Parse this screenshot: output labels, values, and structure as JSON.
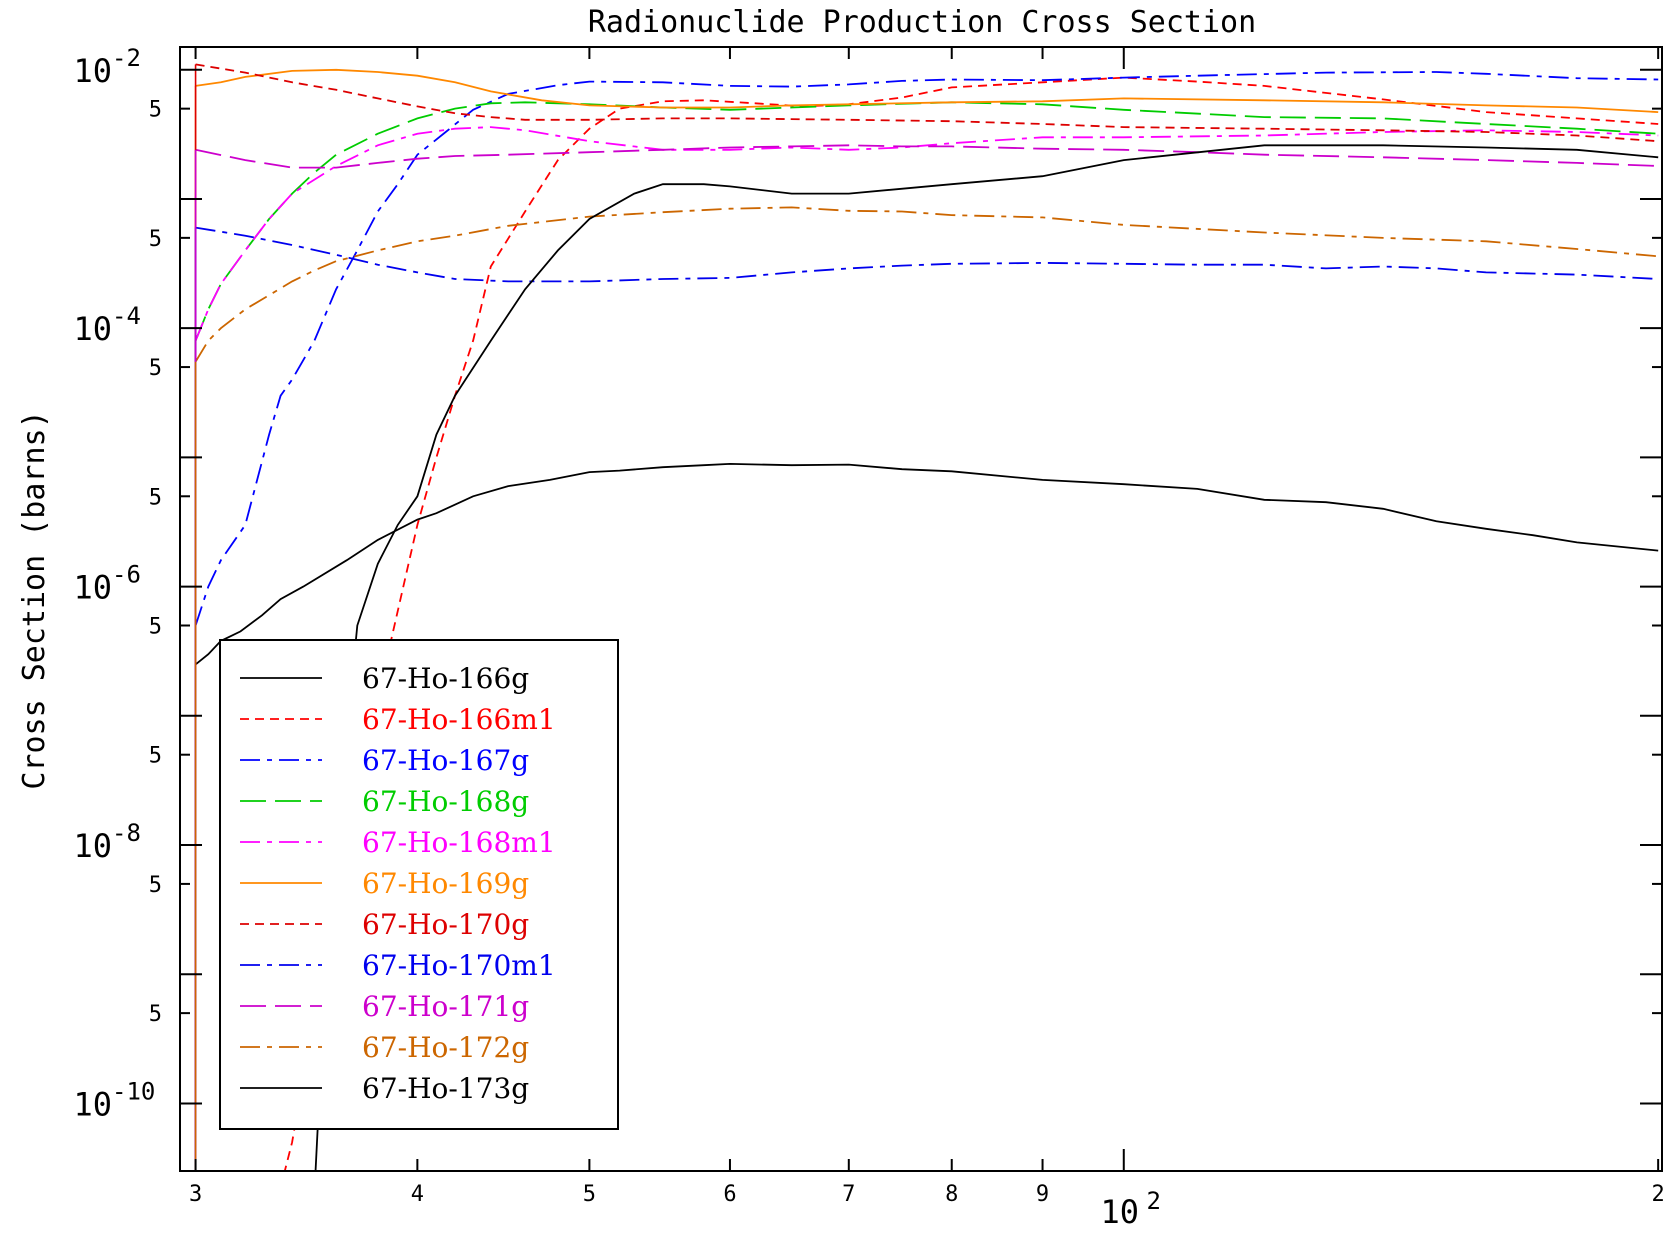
{
  "chart_data": {
    "type": "line",
    "title": "Radionuclide Production Cross Section",
    "ylabel": "Cross Section (barns)",
    "xlabel": "",
    "x_scale": "log",
    "y_scale": "log",
    "xlim": [
      29.4,
      201
    ],
    "ylim": [
      3e-11,
      0.015
    ],
    "grid": false,
    "legend_position": "bottom-left",
    "x_ticks": [
      {
        "value": 30,
        "label": "3"
      },
      {
        "value": 40,
        "label": "4"
      },
      {
        "value": 50,
        "label": "5"
      },
      {
        "value": 60,
        "label": "6"
      },
      {
        "value": 70,
        "label": "7"
      },
      {
        "value": 80,
        "label": "8"
      },
      {
        "value": 90,
        "label": "9"
      },
      {
        "value": 200,
        "label": "2"
      }
    ],
    "x_decade_label": {
      "value": 100,
      "base": "10",
      "exp": "2"
    },
    "y_ticks": [
      {
        "value": 0.01,
        "base": "10",
        "exp": "-2"
      },
      {
        "value": 0.0001,
        "base": "10",
        "exp": "-4"
      },
      {
        "value": 1e-06,
        "base": "10",
        "exp": "-6"
      },
      {
        "value": 1e-08,
        "base": "10",
        "exp": "-8"
      },
      {
        "value": 1e-10,
        "base": "10",
        "exp": "-10"
      }
    ],
    "y_minor_ticks": [
      {
        "value": 0.005,
        "label": "5"
      },
      {
        "value": 0.0005,
        "label": "5"
      },
      {
        "value": 5e-05,
        "label": "5"
      },
      {
        "value": 5e-06,
        "label": "5"
      },
      {
        "value": 5e-07,
        "label": "5"
      },
      {
        "value": 5e-08,
        "label": "5"
      },
      {
        "value": 5e-09,
        "label": "5"
      },
      {
        "value": 5e-10,
        "label": "5"
      }
    ],
    "y_decade_marks": [
      0.001,
      1e-05,
      1e-07,
      1e-09
    ],
    "series": [
      {
        "name": "67-Ho-166g",
        "color": "#000000",
        "dash": "solid",
        "x": [
          30,
          30.5,
          31,
          31.8,
          32.7,
          33.5,
          34.5,
          36.5,
          38,
          40,
          41,
          43,
          45,
          47.5,
          50,
          52,
          55,
          58,
          60,
          65,
          70,
          75,
          80,
          90,
          100,
          110,
          120,
          130,
          140,
          150,
          160,
          170,
          180,
          200
        ],
        "y": [
          2.5e-07,
          3e-07,
          3.8e-07,
          4.5e-07,
          6e-07,
          8e-07,
          1e-06,
          1.6e-06,
          2.3e-06,
          3.3e-06,
          3.7e-06,
          5e-06,
          6e-06,
          6.7e-06,
          7.7e-06,
          7.9e-06,
          8.4e-06,
          8.7e-06,
          8.9e-06,
          8.7e-06,
          8.8e-06,
          8.1e-06,
          7.8e-06,
          6.7e-06,
          6.2e-06,
          5.7e-06,
          4.7e-06,
          4.5e-06,
          4e-06,
          3.2e-06,
          2.8e-06,
          2.5e-06,
          2.2e-06,
          1.9e-06
        ]
      },
      {
        "name": "67-Ho-166m1",
        "color": "#ff0000",
        "dash": "short",
        "x": [
          33,
          34,
          35,
          36.5,
          37.5,
          38.5,
          40,
          41,
          42,
          43,
          44,
          46,
          48,
          50,
          52,
          55,
          58,
          62,
          66,
          70,
          75,
          80,
          90,
          100,
          110,
          120,
          140,
          160,
          180,
          200
        ],
        "y": [
          1e-11,
          5e-11,
          5e-10,
          5e-09,
          2e-08,
          3e-07,
          3e-06,
          1e-05,
          3e-05,
          8e-05,
          0.0003,
          0.0008,
          0.002,
          0.0035,
          0.005,
          0.0057,
          0.0058,
          0.0055,
          0.0052,
          0.0054,
          0.0061,
          0.0073,
          0.008,
          0.0087,
          0.0081,
          0.0075,
          0.0059,
          0.0047,
          0.0042,
          0.0038
        ]
      },
      {
        "name": "67-Ho-167g",
        "color": "#0000ff",
        "dash": "dashdot",
        "x": [
          30,
          30.5,
          31,
          32,
          33,
          33.5,
          34,
          35,
          36,
          37,
          38,
          39,
          40,
          41.5,
          43,
          45,
          48,
          50,
          55,
          60,
          65,
          70,
          75,
          80,
          90,
          100,
          110,
          130,
          150,
          160,
          180,
          200
        ],
        "y": [
          5e-07,
          1e-06,
          1.6e-06,
          3e-06,
          1.5e-05,
          3e-05,
          4e-05,
          8e-05,
          0.0002,
          0.0004,
          0.0008,
          0.0013,
          0.0022,
          0.0033,
          0.0049,
          0.0065,
          0.0076,
          0.0081,
          0.008,
          0.0075,
          0.0074,
          0.0077,
          0.0082,
          0.0084,
          0.0083,
          0.0087,
          0.009,
          0.0095,
          0.0096,
          0.0093,
          0.0086,
          0.0084
        ]
      },
      {
        "name": "67-Ho-168g",
        "color": "#00cc00",
        "dash": "longdash",
        "x": [
          30,
          30.5,
          31,
          32,
          33,
          34,
          35,
          36,
          38,
          40,
          42,
          44,
          46,
          50,
          55,
          60,
          65,
          70,
          80,
          90,
          100,
          120,
          140,
          160,
          180,
          200
        ],
        "y": [
          8e-05,
          0.00014,
          0.00022,
          0.0004,
          0.0007,
          0.0011,
          0.0016,
          0.0022,
          0.0032,
          0.0042,
          0.005,
          0.0055,
          0.0056,
          0.0054,
          0.0051,
          0.0049,
          0.0051,
          0.0053,
          0.0056,
          0.0054,
          0.0049,
          0.0043,
          0.0042,
          0.0038,
          0.0035,
          0.0032
        ]
      },
      {
        "name": "67-Ho-168m1",
        "color": "#ff00ff",
        "dash": "dashdot",
        "x": [
          30,
          30.5,
          31,
          32,
          33,
          34,
          36,
          38,
          40,
          42,
          44,
          46,
          50,
          55,
          60,
          65,
          70,
          75,
          80,
          90,
          100,
          120,
          140,
          160,
          180,
          200
        ],
        "y": [
          8e-05,
          0.00014,
          0.00022,
          0.0004,
          0.0007,
          0.0011,
          0.0018,
          0.0026,
          0.0032,
          0.0035,
          0.0036,
          0.0034,
          0.0028,
          0.0024,
          0.0024,
          0.0025,
          0.0024,
          0.0025,
          0.0027,
          0.003,
          0.003,
          0.0031,
          0.0033,
          0.0034,
          0.0033,
          0.0031
        ]
      },
      {
        "name": "67-Ho-169g",
        "color": "#ff8800",
        "dash": "solid",
        "x": [
          30,
          31,
          32,
          34,
          36,
          38,
          40,
          42,
          44,
          47,
          50,
          55,
          60,
          65,
          70,
          80,
          90,
          100,
          120,
          140,
          160,
          180,
          200
        ],
        "y": [
          0.0075,
          0.008,
          0.0088,
          0.0098,
          0.01,
          0.0096,
          0.009,
          0.008,
          0.0068,
          0.0058,
          0.0053,
          0.0051,
          0.0051,
          0.0053,
          0.0054,
          0.0056,
          0.0057,
          0.006,
          0.0058,
          0.0056,
          0.0053,
          0.0051,
          0.0047
        ]
      },
      {
        "name": "67-Ho-170g",
        "color": "#dd0000",
        "dash": "short",
        "x": [
          30,
          32,
          34,
          36,
          38,
          40,
          42,
          44,
          46,
          50,
          55,
          60,
          70,
          80,
          90,
          100,
          120,
          140,
          160,
          180,
          200
        ],
        "y": [
          0.011,
          0.0095,
          0.008,
          0.007,
          0.006,
          0.0052,
          0.0046,
          0.0043,
          0.0041,
          0.0041,
          0.0042,
          0.0042,
          0.0041,
          0.004,
          0.0038,
          0.0036,
          0.0035,
          0.0034,
          0.0033,
          0.0031,
          0.0028
        ]
      },
      {
        "name": "67-Ho-170m1",
        "color": "#0000ee",
        "dash": "dashdot",
        "x": [
          30,
          32,
          34,
          36,
          38,
          40,
          42,
          45,
          50,
          55,
          60,
          65,
          70,
          75,
          80,
          90,
          100,
          110,
          120,
          130,
          140,
          150,
          160,
          180,
          200
        ],
        "y": [
          0.0006,
          0.00052,
          0.00044,
          0.00037,
          0.00031,
          0.00027,
          0.00024,
          0.00023,
          0.00023,
          0.00024,
          0.000245,
          0.00027,
          0.00029,
          0.000305,
          0.000315,
          0.00032,
          0.000315,
          0.00031,
          0.00031,
          0.00029,
          0.0003,
          0.00029,
          0.00027,
          0.00026,
          0.00024
        ]
      },
      {
        "name": "67-Ho-171g",
        "color": "#cc00cc",
        "dash": "longdash",
        "x": [
          30,
          32,
          34,
          36,
          38,
          40,
          42,
          45,
          50,
          55,
          60,
          65,
          70,
          75,
          80,
          90,
          100,
          110,
          120,
          140,
          160,
          180,
          200
        ],
        "y": [
          0.0024,
          0.002,
          0.00175,
          0.00175,
          0.0019,
          0.00205,
          0.00215,
          0.0022,
          0.0023,
          0.0024,
          0.0025,
          0.00255,
          0.0026,
          0.00255,
          0.00255,
          0.00245,
          0.0024,
          0.0023,
          0.0022,
          0.0021,
          0.002,
          0.0019,
          0.0018
        ]
      },
      {
        "name": "67-Ho-172g",
        "color": "#cc6600",
        "dash": "dashdot",
        "x": [
          30,
          30.5,
          31,
          32,
          33,
          34,
          35,
          36,
          38,
          40,
          42,
          45,
          50,
          55,
          60,
          65,
          70,
          75,
          80,
          90,
          100,
          120,
          140,
          160,
          180,
          200
        ],
        "y": [
          5.5e-05,
          8e-05,
          0.0001,
          0.00014,
          0.00018,
          0.00023,
          0.00028,
          0.00033,
          0.0004,
          0.00047,
          0.00052,
          0.00062,
          0.00073,
          0.00079,
          0.00084,
          0.00086,
          0.00081,
          0.0008,
          0.00075,
          0.00072,
          0.00063,
          0.00055,
          0.0005,
          0.00047,
          0.00041,
          0.00036
        ]
      },
      {
        "name": "67-Ho-173g",
        "color": "#000000",
        "dash": "solid",
        "x": [
          35,
          35.5,
          36,
          37,
          38,
          39,
          40,
          41,
          42,
          44,
          46,
          48,
          50,
          53,
          55,
          58,
          60,
          65,
          70,
          80,
          90,
          100,
          120,
          140,
          160,
          180,
          200
        ],
        "y": [
          2e-11,
          1e-09,
          1e-08,
          5e-07,
          1.5e-06,
          3e-06,
          5e-06,
          1.5e-05,
          3e-05,
          8e-05,
          0.0002,
          0.0004,
          0.0007,
          0.0011,
          0.0013,
          0.0013,
          0.00125,
          0.0011,
          0.0011,
          0.0013,
          0.0015,
          0.002,
          0.0026,
          0.0026,
          0.0025,
          0.0024,
          0.0021
        ]
      }
    ]
  }
}
